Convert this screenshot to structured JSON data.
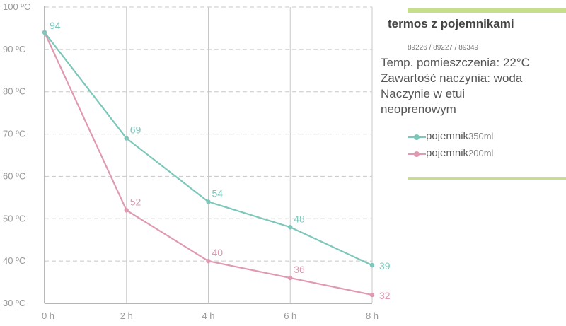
{
  "chart_data": {
    "type": "line",
    "x": [
      "0 h",
      "2 h",
      "4 h",
      "6 h",
      "8 h"
    ],
    "y_ticks": [
      "30 ºC",
      "40 ºC",
      "50 ºC",
      "60 ºC",
      "70 ºC",
      "80 ºC",
      "90 ºC",
      "100 ºC"
    ],
    "ylim": [
      30,
      100
    ],
    "grid": true,
    "legend_position": "right",
    "series": [
      {
        "name": "pojemnik",
        "unit": "350ml",
        "color": "#7cc7ba",
        "values": [
          94,
          69,
          54,
          48,
          39
        ],
        "labels": [
          "94",
          "69",
          "54",
          "48",
          "39"
        ]
      },
      {
        "name": "pojemnik",
        "unit": "200ml",
        "color": "#e09ab0",
        "values": [
          94,
          52,
          40,
          36,
          32
        ],
        "labels": [
          "",
          "52",
          "40",
          "36",
          "32"
        ]
      }
    ]
  },
  "panel": {
    "title": "termos z pojemnikami",
    "codes": "89226 / 89227 / 89349",
    "info_lines": [
      "Temp. pomieszczenia: 22°C",
      "Zawartość naczynia: woda",
      "Naczynie w etui",
      "neoprenowym"
    ],
    "accent_color": "#c5df8a"
  }
}
